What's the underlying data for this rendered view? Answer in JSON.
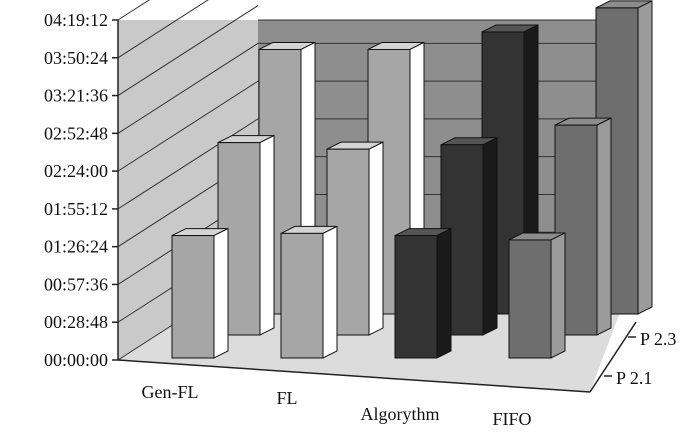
{
  "chart_data": {
    "type": "bar",
    "variant": "3d-clustered-depth",
    "title": "",
    "xlabel": "",
    "ylabel": "",
    "y_ticks": [
      "00:00:00",
      "00:28:48",
      "00:57:36",
      "01:26:24",
      "01:55:12",
      "02:24:00",
      "02:52:48",
      "03:21:36",
      "03:50:24",
      "04:19:12"
    ],
    "ylim_seconds": [
      0,
      15552
    ],
    "categories": [
      "Gen-FL",
      "FL",
      "Algorythm",
      "FIFO"
    ],
    "depth_labels": [
      "P 2.1",
      "P 2.3"
    ],
    "series": [
      {
        "values_seconds": [
          5600,
          5700,
          5600,
          5400
        ]
      },
      {
        "values_seconds": [
          8800,
          8500,
          8700,
          9600
        ]
      },
      {
        "values_seconds": [
          12100,
          12100,
          12900,
          14000
        ]
      }
    ],
    "grid": true,
    "colors": {
      "bar_light": "#a6a6a6",
      "bar_dark": "#333333",
      "bar_fifo": "#6e6e6e",
      "wall_back": "#8c8c8c",
      "wall_side": "#c8c8c8",
      "floor": "#dcdcdc"
    }
  }
}
